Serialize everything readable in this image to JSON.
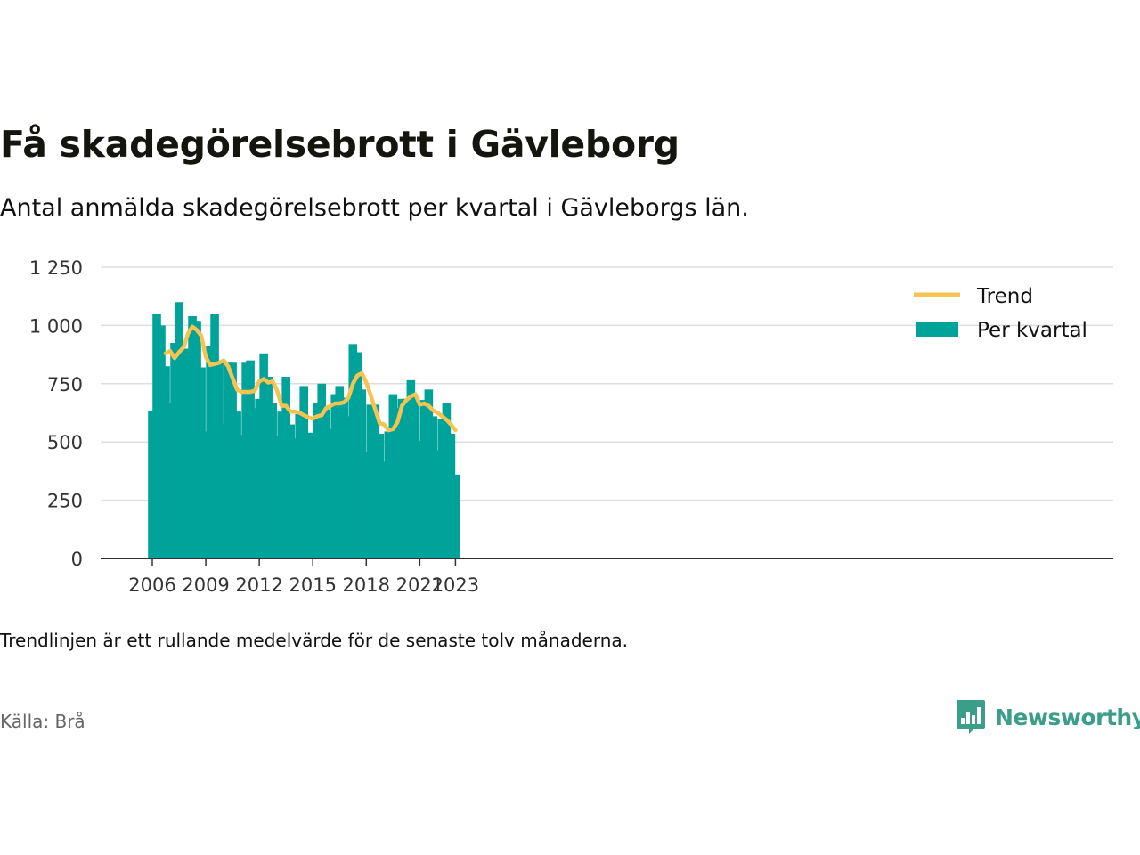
{
  "title": "Få skadegörelsebrott i Gävleborg",
  "subtitle": "Antal anmälda skadegörelsebrott per kvartal i Gävleborgs län.",
  "footnote": "Trendlinjen är ett rullande medelvärde för de senaste tolv månaderna.",
  "source": "Källa: Brå",
  "brand": {
    "name": "Newsworthy",
    "icon": "bar-chart-speech-bubble-icon"
  },
  "colors": {
    "bar": "#00a39a",
    "trend": "#f6c351",
    "grid": "#dddddd",
    "axis": "#333333",
    "brand": "#3a9e8a",
    "text": "#333333"
  },
  "chart_data": {
    "type": "bar",
    "legend": {
      "position": "top-right",
      "entries": [
        "Trend",
        "Per kvartal"
      ]
    },
    "ylim": [
      0,
      1250
    ],
    "yticks": [
      0,
      250,
      500,
      750,
      1000,
      1250
    ],
    "ytick_labels": [
      "0",
      "250",
      "500",
      "750",
      "1 000",
      "1 250"
    ],
    "xticks": [
      "2006",
      "2009",
      "2012",
      "2015",
      "2018",
      "2021",
      "2023"
    ],
    "grid": true,
    "start": "2006-Q1",
    "series": [
      {
        "name": "Per kvartal",
        "type": "bar",
        "values": [
          635,
          1048,
          1000,
          825,
          665,
          925,
          1100,
          900,
          900,
          1040,
          1020,
          820,
          545,
          910,
          1050,
          840,
          575,
          840,
          840,
          630,
          530,
          840,
          850,
          645,
          685,
          880,
          780,
          665,
          525,
          630,
          780,
          575,
          515,
          620,
          740,
          540,
          500,
          665,
          750,
          640,
          555,
          705,
          740,
          690,
          610,
          920,
          885,
          725,
          455,
          660,
          660,
          535,
          415,
          545,
          705,
          645,
          685,
          685,
          765,
          690,
          505,
          680,
          725,
          610,
          465,
          600,
          665,
          535,
          360
        ]
      },
      {
        "name": "Trend",
        "type": "line",
        "values": [
          null,
          null,
          null,
          880,
          890,
          860,
          885,
          905,
          965,
          995,
          980,
          955,
          865,
          830,
          835,
          840,
          850,
          825,
          775,
          725,
          715,
          715,
          715,
          720,
          760,
          770,
          755,
          760,
          720,
          655,
          655,
          630,
          630,
          625,
          615,
          605,
          600,
          610,
          615,
          645,
          655,
          665,
          665,
          670,
          690,
          750,
          785,
          795,
          755,
          700,
          640,
          580,
          575,
          550,
          555,
          585,
          655,
          680,
          695,
          705,
          660,
          665,
          655,
          635,
          625,
          610,
          595,
          575,
          550
        ]
      }
    ]
  }
}
